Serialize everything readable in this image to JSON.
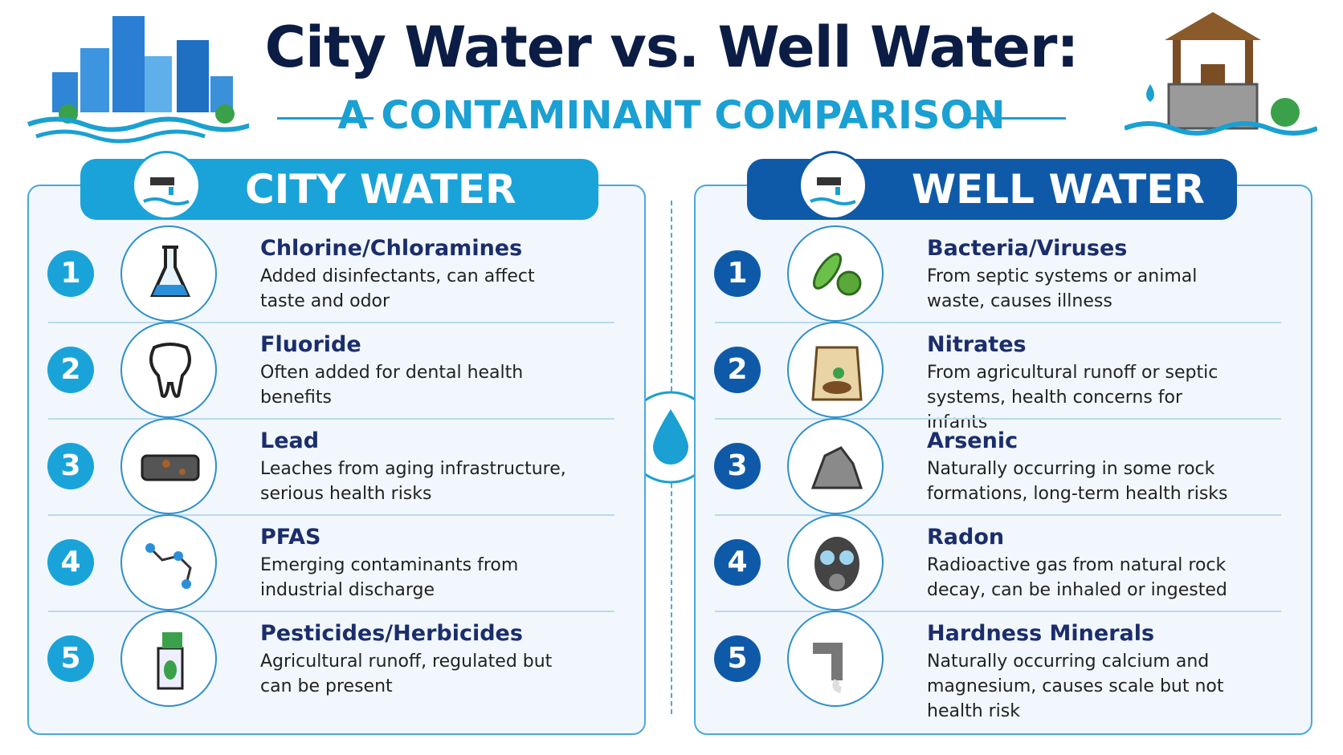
{
  "header": {
    "title": "City Water vs. Well Water:",
    "subtitle": "A CONTAMINANT COMPARISON"
  },
  "panels": [
    {
      "title": "CITY WATER",
      "items": [
        {
          "number": 1,
          "title": "Chlorine/Chloramines",
          "description": "Added disinfectants, can affect taste and odor"
        },
        {
          "number": 2,
          "title": "Fluoride",
          "description": "Often added for dental health benefits"
        },
        {
          "number": 3,
          "title": "Lead",
          "description": "Leaches from aging infrastructure, serious health risks"
        },
        {
          "number": 4,
          "title": "PFAS",
          "description": "Emerging contaminants from industrial discharge"
        },
        {
          "number": 5,
          "title": "Pesticides/Herbicides",
          "description": "Agricultural runoff, regulated but can be present"
        }
      ]
    },
    {
      "title": "WELL WATER",
      "items": [
        {
          "number": 1,
          "title": "Bacteria/Viruses",
          "description": "From septic systems or animal waste, causes illness"
        },
        {
          "number": 2,
          "title": "Nitrates",
          "description": "From agricultural runoff or septic systems, health concerns for infants"
        },
        {
          "number": 3,
          "title": "Arsenic",
          "description": "Naturally occurring in some rock formations, long-term health risks"
        },
        {
          "number": 4,
          "title": "Radon",
          "description": "Radioactive gas from natural rock decay, can be inhaled or ingested"
        },
        {
          "number": 5,
          "title": "Hardness Minerals",
          "description": "Naturally occurring calcium and magnesium, causes scale but not health risk"
        }
      ]
    }
  ]
}
